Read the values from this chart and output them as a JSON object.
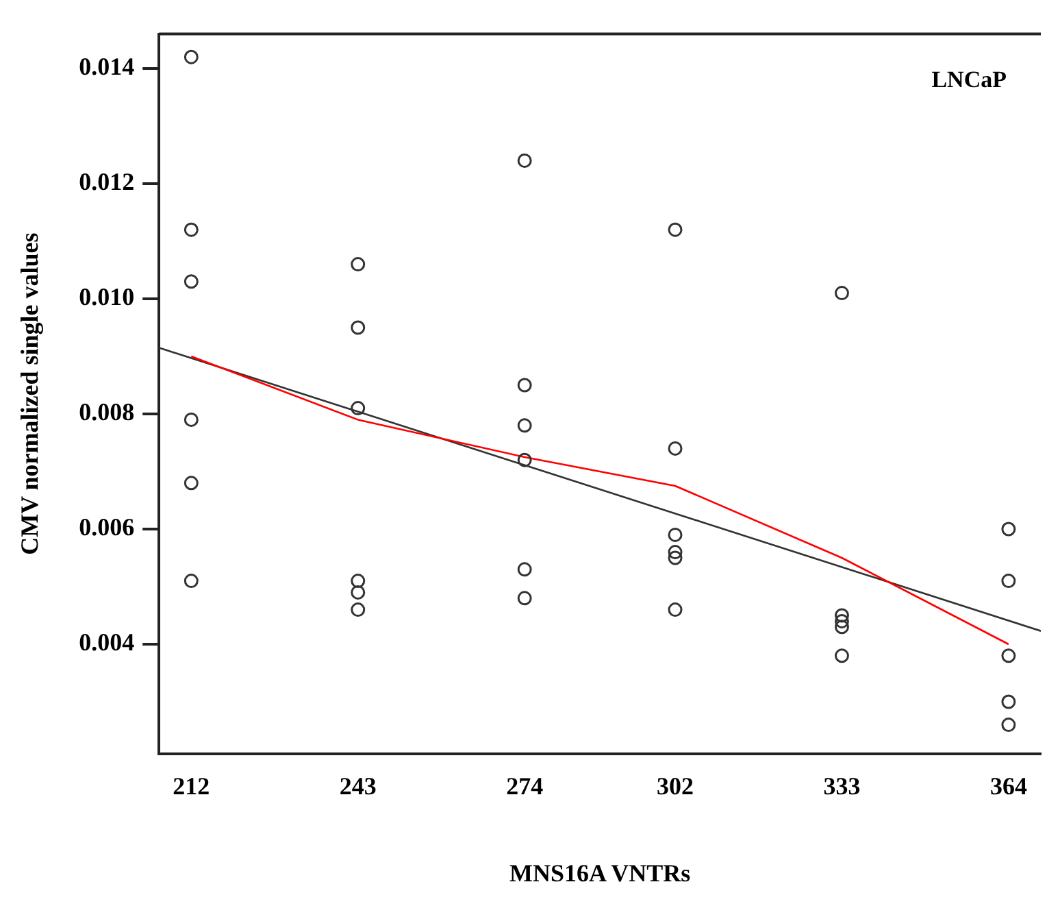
{
  "chart_data": {
    "type": "scatter",
    "xlabel": "MNS16A VNTRs",
    "ylabel": "CMV normalized single values",
    "annotations": [
      "LNCaP"
    ],
    "xlim": [
      206,
      370
    ],
    "xticks": [
      212,
      243,
      274,
      302,
      333,
      364
    ],
    "ylim": [
      0.0021,
      0.0146
    ],
    "yticks": [
      0.004,
      0.006,
      0.008,
      {
        "value": 0.01,
        "label": "0.010"
      },
      0.012,
      0.014
    ],
    "grid": false,
    "legend": false,
    "marker": "circle",
    "series": [
      {
        "color": "#333333",
        "x": [
          212,
          212,
          212,
          212,
          212,
          212,
          243,
          243,
          243,
          243,
          243,
          243,
          274,
          274,
          274,
          274,
          274,
          274,
          302,
          302,
          302,
          302,
          302,
          302,
          333,
          333,
          333,
          333,
          333,
          364,
          364,
          364,
          364,
          364
        ],
        "values": [
          0.0142,
          0.0112,
          0.0103,
          0.0079,
          0.0068,
          0.0051,
          0.0106,
          0.0095,
          0.0081,
          0.0051,
          0.0049,
          0.0046,
          0.0124,
          0.0085,
          0.0078,
          0.0072,
          0.0053,
          0.0048,
          0.0112,
          0.0074,
          0.0059,
          0.0056,
          0.0055,
          0.0046,
          0.0101,
          0.0045,
          0.0044,
          0.0043,
          0.0038,
          0.006,
          0.0051,
          0.0038,
          0.003,
          0.0026
        ]
      },
      {
        "type": "line",
        "color": "#ff0000",
        "marker": "none",
        "x": [
          212,
          243,
          274,
          302,
          333,
          364
        ],
        "values": [
          0.009,
          0.0079,
          0.00725,
          0.00675,
          0.0055,
          0.004
        ]
      },
      {
        "type": "line",
        "color": "#333333",
        "marker": "none",
        "x": [
          206,
          370
        ],
        "values": [
          0.00915,
          0.00423
        ]
      }
    ]
  }
}
